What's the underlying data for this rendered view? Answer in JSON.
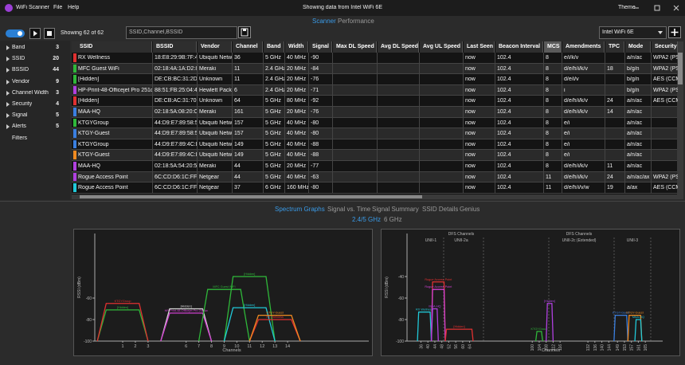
{
  "titlebar": {
    "app": "WiFi Scanner",
    "menu": [
      "File",
      "Help"
    ],
    "status": "Showing data from Intel WiFi 6E",
    "theme": "Theme"
  },
  "tabs": [
    "Scanner",
    "Performance"
  ],
  "toolbar": {
    "count": "Showing 62 of 62",
    "search": "SSID,Channel,BSSID",
    "adapter": "Intel WiFi 6E"
  },
  "filters": [
    {
      "label": "Band",
      "count": 3
    },
    {
      "label": "SSID",
      "count": 20
    },
    {
      "label": "BSSID",
      "count": 44
    },
    {
      "label": "Vendor",
      "count": 9
    },
    {
      "label": "Channel Width",
      "count": 3
    },
    {
      "label": "Security",
      "count": 4
    },
    {
      "label": "Signal",
      "count": 5
    },
    {
      "label": "Alerts",
      "count": 5
    }
  ],
  "filters_button": "Filters",
  "table": {
    "columns": [
      "SSID",
      "BSSID",
      "Vendor",
      "Channel",
      "Band",
      "Width",
      "Signal",
      "Max DL Speed",
      "Avg DL Speed",
      "Avg UL Speed",
      "Last Seen",
      "Beacon Interval",
      "MCS",
      "Amendments",
      "TPC",
      "Mode",
      "Security"
    ],
    "rows": [
      {
        "color": "#e03030",
        "cells": [
          "RX Wellness",
          "18:E8:29:9B:7F:42",
          "Ubiquiti Netw",
          "36",
          "5 GHz",
          "40 MHz",
          "-90",
          null,
          null,
          null,
          "now",
          "102.4",
          "8",
          "e/i/k/v",
          null,
          "a/n/ac",
          "WPA2 (PSK)"
        ]
      },
      {
        "color": "#2fb83a",
        "cells": [
          "MFC Guest WiFi",
          "02:18:4A:1A:D2:81",
          "Meraki",
          "11",
          "2.4 GHz",
          "20 MHz",
          "-84",
          null,
          null,
          null,
          "now",
          "102.4",
          "8",
          "d/e/h/i/k/v",
          "18",
          "b/g/n",
          "WPA2 (PSK)"
        ]
      },
      {
        "color": "#2fb83a",
        "cells": [
          "[Hidden]",
          "DE:CB:BC:31:2D:F0",
          "Unknown",
          "11",
          "2.4 GHz",
          "20 MHz",
          "-76",
          null,
          null,
          null,
          "now",
          "102.4",
          "8",
          "d/e/i/v",
          null,
          "b/g/n",
          "AES (CCM)"
        ]
      },
      {
        "color": "#b040e0",
        "cells": [
          "HP-Print-48-Officejet Pro 251dw",
          "88:51:FB:25:04:48",
          "Hewlett Packa",
          "6",
          "2.4 GHz",
          "20 MHz",
          "-71",
          null,
          null,
          null,
          "now",
          "102.4",
          "8",
          "i",
          null,
          "b/g/n",
          "WPA2 (PSK)"
        ]
      },
      {
        "color": "#e03030",
        "cells": [
          "[Hidden]",
          "DE:CB:AC:31:70:42",
          "Unknown",
          "64",
          "5 GHz",
          "80 MHz",
          "-92",
          null,
          null,
          null,
          "now",
          "102.4",
          "8",
          "d/e/h/i/k/v",
          "24",
          "a/n/ac",
          "AES (CCM)"
        ]
      },
      {
        "color": "#3a7fe0",
        "cells": [
          "MAA-HQ",
          "02:18:5A:08:20:C0",
          "Meraki",
          "161",
          "5 GHz",
          "20 MHz",
          "-76",
          null,
          null,
          null,
          "now",
          "102.4",
          "8",
          "d/e/h/i/k/v",
          "14",
          "a/n/ac",
          null
        ]
      },
      {
        "color": "#2fb83a",
        "cells": [
          "KTGYGroup",
          "44:D9:E7:89:58:51",
          "Ubiquiti Netw",
          "157",
          "5 GHz",
          "40 MHz",
          "-80",
          null,
          null,
          null,
          "now",
          "102.4",
          "8",
          "e/i",
          null,
          "a/n/ac",
          null
        ]
      },
      {
        "color": "#3a7fe0",
        "cells": [
          "KTGY-Guest",
          "44:D9:E7:89:58:51",
          "Ubiquiti Netw",
          "157",
          "5 GHz",
          "40 MHz",
          "-80",
          null,
          null,
          null,
          "now",
          "102.4",
          "8",
          "e/i",
          null,
          "a/n/ac",
          null
        ]
      },
      {
        "color": "#3a7fe0",
        "cells": [
          "KTGYGroup",
          "44:D9:E7:89:4C:D1",
          "Ubiquiti Netw",
          "149",
          "5 GHz",
          "40 MHz",
          "-88",
          null,
          null,
          null,
          "now",
          "102.4",
          "8",
          "e/i",
          null,
          "a/n/ac",
          null
        ]
      },
      {
        "color": "#f08a20",
        "cells": [
          "KTGY-Guest",
          "44:D9:E7:89:4C:D0",
          "Ubiquiti Netw",
          "149",
          "5 GHz",
          "40 MHz",
          "-88",
          null,
          null,
          null,
          "now",
          "102.4",
          "8",
          "e/i",
          null,
          "a/n/ac",
          null
        ]
      },
      {
        "color": "#b040e0",
        "cells": [
          "MAA-HQ",
          "02:18:5A:54:20:50",
          "Meraki",
          "44",
          "5 GHz",
          "20 MHz",
          "-77",
          null,
          null,
          null,
          "now",
          "102.4",
          "8",
          "d/e/h/i/k/v",
          "11",
          "a/n/ac",
          null
        ]
      },
      {
        "color": "#b040e0",
        "cells": [
          "Rogue Access Point",
          "6C:CD:D6:1C:FF:A7",
          "Netgear",
          "44",
          "5 GHz",
          "40 MHz",
          "-63",
          null,
          null,
          null,
          "now",
          "102.4",
          "11",
          "d/e/h/i/k/v",
          "24",
          "a/n/ac/ax",
          "WPA2 (PSK)"
        ]
      },
      {
        "color": "#20c8d8",
        "cells": [
          "Rogue Access Point",
          "6C:CD:D6:1C:FF:A5",
          "Netgear",
          "37",
          "6 GHz",
          "160 MHz",
          "-80",
          null,
          null,
          null,
          "now",
          "102.4",
          "11",
          "d/e/h/i/v/w",
          "19",
          "a/ax",
          "AES (CCM)"
        ]
      }
    ]
  },
  "bottom_tabs": [
    "Spectrum Graphs",
    "Signal vs. Time",
    "Signal Summary",
    "SSID Details",
    "Genius"
  ],
  "band_tabs": [
    "2.4/5 GHz",
    "6 GHz"
  ],
  "spectrum": [
    {
      "type": "spectrum",
      "y_label": "RSSI (dBm)",
      "x_label": "Channels",
      "xlim": [
        -1.2,
        20.4
      ],
      "ylim": [
        -100,
        0
      ],
      "xticks": [
        1,
        2,
        3,
        6,
        7,
        8,
        9,
        10,
        11,
        12,
        13,
        14
      ],
      "yticks": [
        -60,
        -80,
        -100
      ],
      "traces": [
        {
          "name": "[Hidden]",
          "color": "#2fb83a",
          "channel": 1,
          "width": 20,
          "rssi": -71
        },
        {
          "name": "KTGYGroup",
          "color": "#e03030",
          "channel": 1,
          "width": 20,
          "rssi": -65
        },
        {
          "name": "[Hidden]",
          "color": "#d8d8d8",
          "channel": 6,
          "width": 20,
          "rssi": -70
        },
        {
          "name": "HP-Print-48-Officejet Pro 251dw",
          "color": "#d040d0",
          "channel": 6,
          "width": 20,
          "rssi": -74
        },
        {
          "name": "MFC Guest WiFi",
          "color": "#2fb83a",
          "channel": 9,
          "width": 20,
          "rssi": -52
        },
        {
          "name": "[Hidden]",
          "color": "#2fb83a",
          "channel": 11,
          "width": 20,
          "rssi": -40
        },
        {
          "name": "[Hidden]",
          "color": "#20c8d8",
          "channel": 11,
          "width": 20,
          "rssi": -69
        },
        {
          "name": "RX Wellness",
          "color": "#e03030",
          "channel": 13,
          "width": 20,
          "rssi": -80
        },
        {
          "name": "KTGY-Guest",
          "color": "#f08a20",
          "channel": 13,
          "width": 20,
          "rssi": -76
        }
      ]
    },
    {
      "type": "spectrum",
      "y_label": "RSSI (dBm)",
      "x_label": "Channels",
      "xlim": [
        28,
        175
      ],
      "ylim": [
        -100,
        0
      ],
      "xticks": [
        36,
        40,
        44,
        48,
        52,
        56,
        60,
        64,
        100,
        104,
        108,
        112,
        116,
        132,
        136,
        140,
        144,
        149,
        153,
        157,
        161,
        165
      ],
      "yticks": [
        -40,
        -60,
        -80,
        -100
      ],
      "regions": [
        "DFS Channels",
        "DFS Channels",
        "UNII-1",
        "UNII-2a",
        "UNII-2c (Extended)",
        "UNII-3"
      ],
      "traces": [
        {
          "name": "RX Wellness",
          "color": "#20c8d8",
          "channel": 38,
          "width": 40,
          "rssi": -73
        },
        {
          "name": "Rogue Access Point",
          "color": "#e03030",
          "channel": 46,
          "width": 40,
          "rssi": -45
        },
        {
          "name": "Rogue Access Point",
          "color": "#d040d0",
          "channel": 46,
          "width": 40,
          "rssi": -52
        },
        {
          "name": "MAA-HQ",
          "color": "#b040e0",
          "channel": 44,
          "width": 20,
          "rssi": -70
        },
        {
          "name": "[Hidden]",
          "color": "#e03030",
          "channel": 58,
          "width": 80,
          "rssi": -89
        },
        {
          "name": "KTGYGroup",
          "color": "#2fb83a",
          "channel": 104,
          "width": 20,
          "rssi": -91
        },
        {
          "name": "[Hidden]",
          "color": "#b040e0",
          "channel": 110,
          "width": 20,
          "rssi": -65
        },
        {
          "name": "KTGY-Guest",
          "color": "#3a7fe0",
          "channel": 151,
          "width": 40,
          "rssi": -76
        },
        {
          "name": "KTGY-Guest",
          "color": "#f08a20",
          "channel": 159,
          "width": 40,
          "rssi": -76
        },
        {
          "name": "MAA-HQ",
          "color": "#20c8d8",
          "channel": 161,
          "width": 20,
          "rssi": -80
        }
      ]
    }
  ]
}
